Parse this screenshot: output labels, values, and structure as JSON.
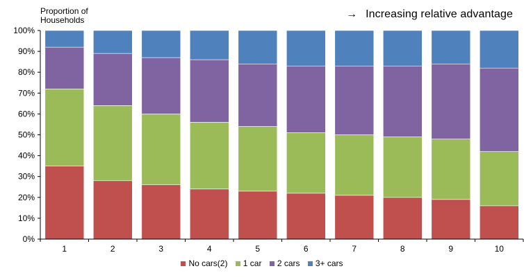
{
  "chart_data": {
    "type": "bar",
    "stacked": true,
    "ylabel": "Proportion of Households",
    "annotation": "Increasing relative advantage",
    "annotation_arrow": "→",
    "categories": [
      "1",
      "2",
      "3",
      "4",
      "5",
      "6",
      "7",
      "8",
      "9",
      "10"
    ],
    "yticks": [
      "0%",
      "10%",
      "20%",
      "30%",
      "40%",
      "50%",
      "60%",
      "70%",
      "80%",
      "90%",
      "100%"
    ],
    "ylim": [
      0,
      100
    ],
    "grid": false,
    "legend_position": "bottom",
    "series": [
      {
        "name": "No cars(2)",
        "color": "#c0504d",
        "values": [
          35,
          28,
          26,
          24,
          23,
          22,
          21,
          20,
          19,
          16
        ]
      },
      {
        "name": "1 car",
        "color": "#9bbb59",
        "values": [
          37,
          36,
          34,
          32,
          31,
          29,
          29,
          29,
          29,
          26
        ]
      },
      {
        "name": "2 cars",
        "color": "#8064a2",
        "values": [
          20,
          25,
          27,
          30,
          30,
          32,
          33,
          34,
          36,
          40
        ]
      },
      {
        "name": "3+ cars",
        "color": "#4f81bd",
        "values": [
          8,
          11,
          13,
          14,
          16,
          17,
          17,
          17,
          16,
          18
        ]
      }
    ]
  }
}
